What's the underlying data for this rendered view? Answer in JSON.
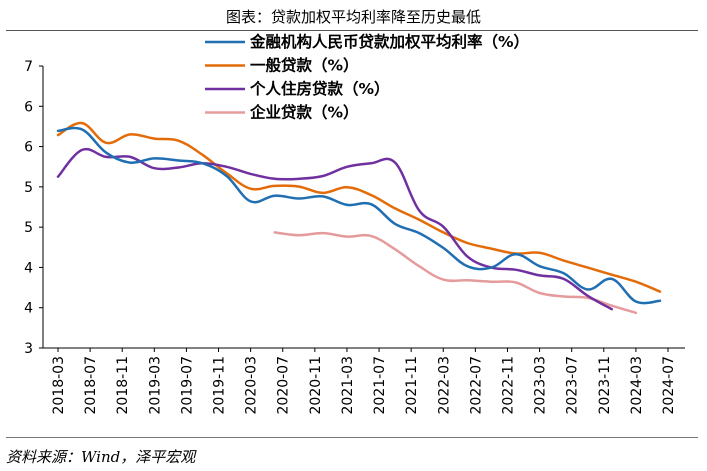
{
  "title": "图表：贷款加权平均利率降至历史最低",
  "source": "资料来源：Wind，泽平宏观",
  "chart_data": {
    "type": "line",
    "x": [
      "2018-03",
      "2018-06",
      "2018-09",
      "2018-12",
      "2019-03",
      "2019-06",
      "2019-09",
      "2019-12",
      "2020-03",
      "2020-06",
      "2020-09",
      "2020-12",
      "2021-03",
      "2021-06",
      "2021-09",
      "2021-12",
      "2022-03",
      "2022-06",
      "2022-09",
      "2022-12",
      "2023-03",
      "2023-06",
      "2023-09",
      "2023-12",
      "2024-03",
      "2024-06",
      "2024-09"
    ],
    "xticks": [
      "2018-03",
      "2018-07",
      "2018-11",
      "2019-03",
      "2019-07",
      "2019-11",
      "2020-03",
      "2020-07",
      "2020-11",
      "2021-03",
      "2021-07",
      "2021-11",
      "2022-03",
      "2022-07",
      "2022-11",
      "2023-03",
      "2023-07",
      "2023-11",
      "2024-03",
      "2024-07"
    ],
    "yticks": [
      "3",
      "4",
      "4",
      "5",
      "5",
      "6",
      "6",
      "7"
    ],
    "ylim": [
      3,
      7
    ],
    "series": [
      {
        "name": "金融机构人民币贷款加权平均利率（%）",
        "color": "#1f6fb2",
        "values": [
          6.08,
          6.1,
          5.77,
          5.63,
          5.69,
          5.66,
          5.62,
          5.44,
          5.08,
          5.16,
          5.12,
          5.15,
          5.03,
          5.04,
          4.76,
          4.63,
          4.42,
          4.16,
          4.14,
          4.33,
          4.16,
          4.06,
          3.83,
          3.98,
          3.66,
          3.67,
          null
        ]
      },
      {
        "name": "一般贷款（%）",
        "color": "#e36c09",
        "values": [
          6.02,
          6.19,
          5.91,
          6.03,
          5.97,
          5.94,
          5.74,
          5.48,
          5.26,
          5.3,
          5.29,
          5.2,
          5.28,
          5.17,
          4.98,
          4.82,
          4.64,
          4.49,
          4.41,
          4.34,
          4.35,
          4.24,
          4.14,
          4.04,
          3.94,
          3.8,
          null
        ]
      },
      {
        "name": "个人住房贷款（%）",
        "color": "#7030a0",
        "values": [
          5.43,
          5.81,
          5.71,
          5.71,
          5.55,
          5.56,
          5.62,
          5.57,
          5.47,
          5.4,
          5.4,
          5.44,
          5.57,
          5.62,
          5.63,
          4.95,
          4.72,
          4.3,
          4.14,
          4.11,
          4.03,
          3.98,
          3.74,
          3.55,
          null,
          null,
          null
        ]
      },
      {
        "name": "企业贷款（%）",
        "color": "#e59b9b",
        "values": [
          null,
          null,
          null,
          null,
          null,
          null,
          null,
          null,
          null,
          4.64,
          4.6,
          4.63,
          4.58,
          4.59,
          4.4,
          4.16,
          3.97,
          3.96,
          3.94,
          3.93,
          3.78,
          3.73,
          3.71,
          3.6,
          3.5,
          null,
          null
        ]
      }
    ]
  }
}
